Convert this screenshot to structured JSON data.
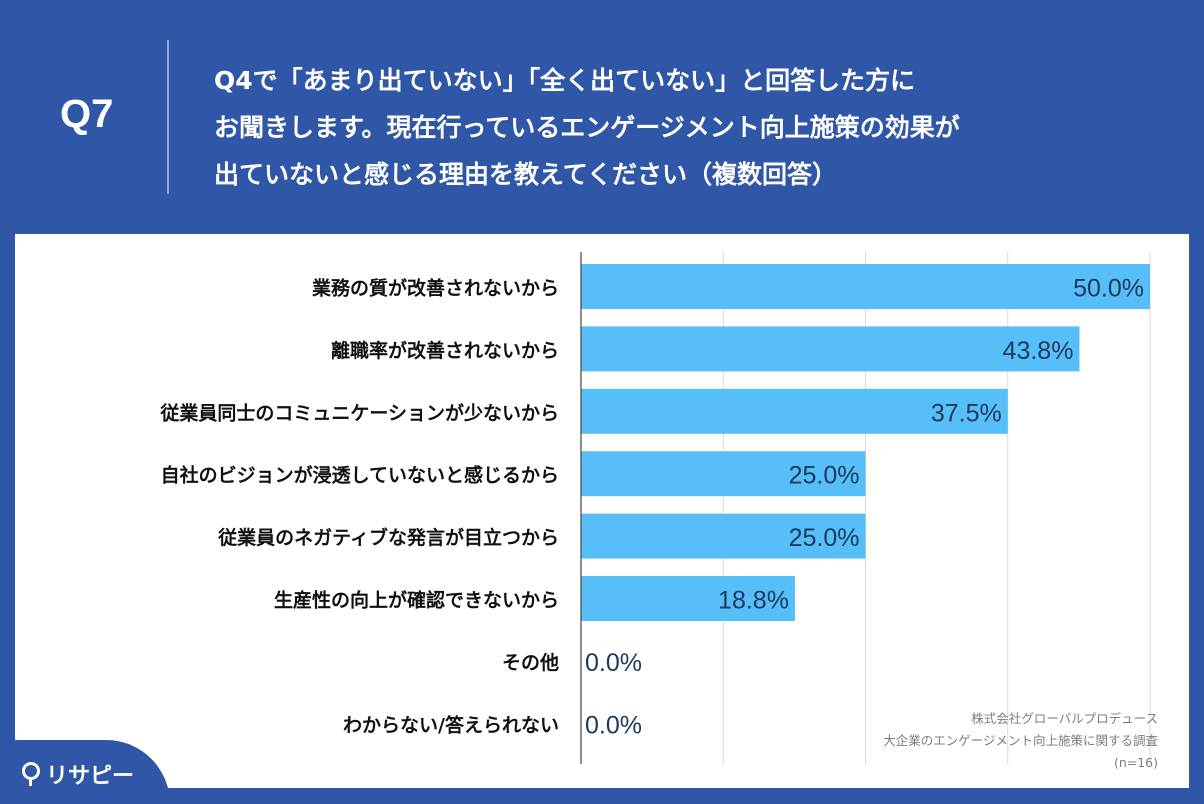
{
  "header": {
    "question_number": "Q7",
    "question_lines": [
      "Q4で「あまり出ていない」「全く出ていない」と回答した方に",
      "お聞きします。現在行っているエンゲージメント向上施策の効果が",
      "出ていないと感じる理由を教えてください（複数回答）"
    ]
  },
  "chart_data": {
    "type": "bar",
    "orientation": "horizontal",
    "categories": [
      "業務の質が改善されないから",
      "離職率が改善されないから",
      "従業員同士のコミュニケーションが少ないから",
      "自社のビジョンが浸透していないと感じるから",
      "従業員のネガティブな発言が目立つから",
      "生産性の向上が確認できないから",
      "その他",
      "わからない/答えられない"
    ],
    "values": [
      50.0,
      43.8,
      37.5,
      25.0,
      25.0,
      18.8,
      0.0,
      0.0
    ],
    "value_labels": [
      "50.0%",
      "43.8%",
      "37.5%",
      "25.0%",
      "25.0%",
      "18.8%",
      "0.0%",
      "0.0%"
    ],
    "xlim": [
      0,
      50
    ],
    "grid": true,
    "bar_color": "#56bef8",
    "label_color": "#1d3a5c"
  },
  "footer": {
    "logo_text": "リサピー",
    "credit_lines": [
      "株式会社グローバルプロデュース",
      "大企業のエンゲージメント向上施策に関する調査",
      "(n=16)"
    ]
  },
  "colors": {
    "background": "#3056a8",
    "panel": "#ffffff",
    "grid": "#d9d9d9"
  }
}
